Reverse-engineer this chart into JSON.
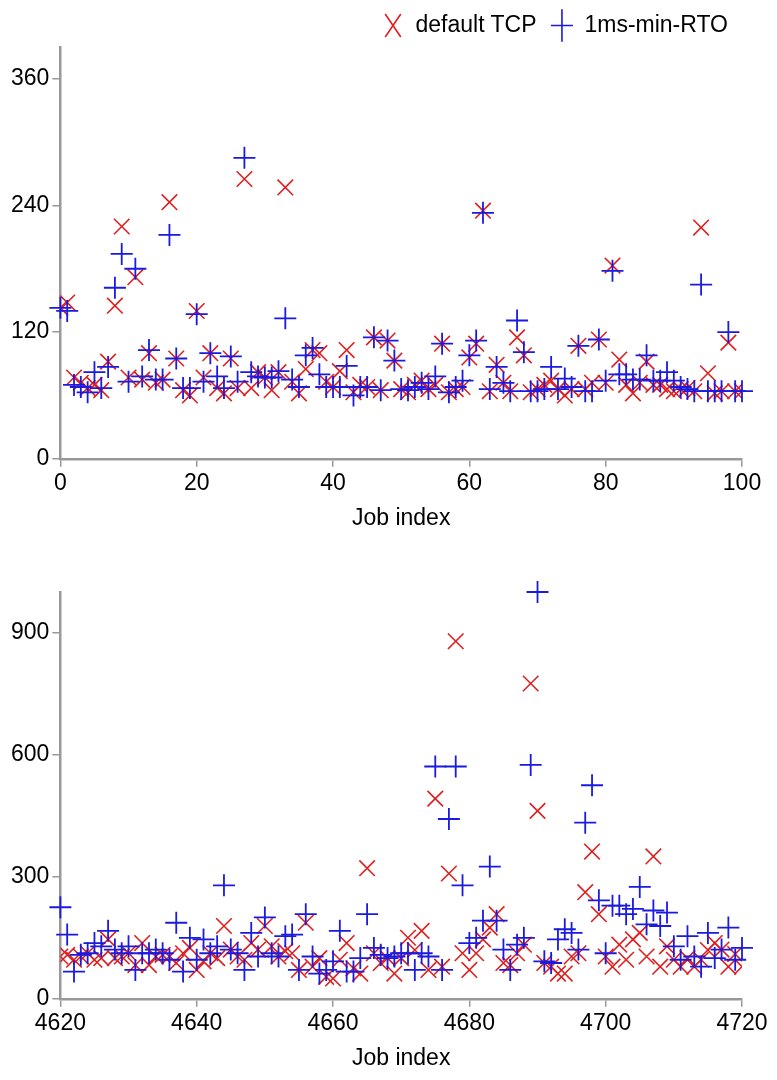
{
  "chart_data": [
    {
      "type": "scatter",
      "xlabel": "Job index",
      "xlim": [
        0,
        100
      ],
      "xticks": [
        0,
        20,
        40,
        60,
        80,
        100
      ],
      "ylim": [
        0,
        390
      ],
      "yticks": [
        0,
        120,
        240,
        360
      ],
      "grid": false,
      "legend": "top right",
      "x": [
        0,
        1,
        2,
        3,
        4,
        5,
        6,
        7,
        8,
        9,
        10,
        11,
        12,
        13,
        14,
        15,
        16,
        17,
        18,
        19,
        20,
        21,
        22,
        23,
        24,
        25,
        26,
        27,
        28,
        29,
        30,
        31,
        32,
        33,
        34,
        35,
        36,
        37,
        38,
        39,
        40,
        41,
        42,
        43,
        44,
        45,
        46,
        47,
        48,
        49,
        50,
        51,
        52,
        53,
        54,
        55,
        56,
        57,
        58,
        59,
        60,
        61,
        62,
        63,
        64,
        65,
        66,
        67,
        68,
        69,
        70,
        71,
        72,
        73,
        74,
        75,
        76,
        77,
        78,
        79,
        80,
        81,
        82,
        83,
        84,
        85,
        86,
        87,
        88,
        89,
        90,
        91,
        92,
        93,
        94,
        95,
        96,
        97,
        98,
        99,
        100
      ],
      "series": [
        {
          "name": "default TCP",
          "color": "#e02020",
          "marker": "x",
          "values": [
            143,
            148,
            77,
            72,
            67,
            70,
            65,
            92,
            145,
            220,
            77,
            172,
            75,
            100,
            72,
            75,
            243,
            95,
            65,
            60,
            140,
            77,
            100,
            67,
            62,
            95,
            67,
            265,
            67,
            82,
            77,
            65,
            82,
            257,
            73,
            62,
            85,
            103,
            100,
            73,
            68,
            83,
            103,
            63,
            70,
            68,
            115,
            65,
            112,
            93,
            66,
            63,
            70,
            74,
            66,
            70,
            109,
            63,
            66,
            68,
            96,
            109,
            235,
            64,
            89,
            72,
            64,
            115,
            98,
            63,
            66,
            70,
            74,
            66,
            60,
            66,
            107,
            66,
            72,
            113,
            72,
            183,
            94,
            70,
            62,
            72,
            92,
            70,
            70,
            66,
            64,
            66,
            67,
            64,
            219,
            81,
            62,
            64,
            110,
            64,
            64
          ]
        },
        {
          "name": "1ms-min-RTO",
          "color": "#1a1ae0",
          "marker": "cross",
          "values": [
            143,
            140,
            70,
            68,
            63,
            82,
            67,
            87,
            162,
            194,
            73,
            180,
            78,
            103,
            75,
            75,
            212,
            95,
            67,
            67,
            137,
            73,
            100,
            78,
            67,
            97,
            73,
            285,
            82,
            78,
            77,
            77,
            83,
            133,
            75,
            68,
            98,
            105,
            80,
            68,
            68,
            68,
            88,
            60,
            68,
            68,
            115,
            65,
            112,
            93,
            66,
            65,
            68,
            72,
            66,
            78,
            109,
            63,
            68,
            74,
            98,
            112,
            233,
            66,
            87,
            72,
            64,
            131,
            101,
            64,
            64,
            66,
            87,
            66,
            76,
            68,
            107,
            64,
            64,
            113,
            74,
            178,
            80,
            80,
            75,
            75,
            98,
            74,
            74,
            82,
            74,
            68,
            66,
            64,
            165,
            64,
            64,
            64,
            120,
            64,
            64
          ]
        }
      ]
    },
    {
      "type": "scatter",
      "xlabel": "Job index",
      "xlim": [
        4620,
        4720
      ],
      "xticks": [
        4620,
        4640,
        4660,
        4680,
        4700,
        4720
      ],
      "ylim": [
        0,
        1000
      ],
      "yticks": [
        0,
        300,
        600,
        900
      ],
      "grid": false,
      "x": [
        4620,
        4621,
        4622,
        4623,
        4624,
        4625,
        4626,
        4627,
        4628,
        4629,
        4630,
        4631,
        4632,
        4633,
        4634,
        4635,
        4636,
        4637,
        4638,
        4639,
        4640,
        4641,
        4642,
        4643,
        4644,
        4645,
        4646,
        4647,
        4648,
        4649,
        4650,
        4651,
        4652,
        4653,
        4654,
        4655,
        4656,
        4657,
        4658,
        4659,
        4660,
        4661,
        4662,
        4663,
        4664,
        4665,
        4666,
        4667,
        4668,
        4669,
        4670,
        4671,
        4672,
        4673,
        4674,
        4675,
        4676,
        4677,
        4678,
        4679,
        4680,
        4681,
        4682,
        4683,
        4684,
        4685,
        4686,
        4687,
        4688,
        4689,
        4690,
        4691,
        4692,
        4693,
        4694,
        4695,
        4696,
        4697,
        4698,
        4699,
        4700,
        4701,
        4702,
        4703,
        4704,
        4705,
        4706,
        4707,
        4708,
        4709,
        4710,
        4711,
        4712,
        4713,
        4714,
        4715,
        4716,
        4717,
        4718,
        4719,
        4720
      ],
      "series": [
        {
          "color": "#e02020",
          "marker": "x",
          "values": [
            104,
            108,
            96,
            104,
            112,
            96,
            100,
            146,
            100,
            104,
            112,
            83,
            137,
            83,
            104,
            108,
            104,
            88,
            112,
            125,
            71,
            92,
            112,
            100,
            179,
            121,
            104,
            96,
            137,
            121,
            179,
            129,
            104,
            117,
            112,
            71,
            187,
            79,
            100,
            54,
            50,
            96,
            137,
            75,
            62,
            321,
            112,
            88,
            100,
            62,
            100,
            150,
            120,
            167,
            71,
            492,
            79,
            308,
            879,
            112,
            71,
            112,
            146,
            175,
            208,
            88,
            83,
            112,
            133,
            775,
            462,
            88,
            79,
            62,
            62,
            104,
            112,
            262,
            362,
            208,
            104,
            79,
            133,
            96,
            146,
            162,
            104,
            350,
            79,
            129,
            96,
            79,
            100,
            79,
            96,
            120,
            137,
            121,
            79,
            110,
            79
          ]
        },
        {
          "color": "#1a1ae0",
          "marker": "cross",
          "values": [
            225,
            158,
            67,
            108,
            112,
            137,
            129,
            167,
            121,
            112,
            129,
            71,
            112,
            112,
            121,
            112,
            96,
            187,
            67,
            150,
            96,
            146,
            112,
            129,
            279,
            121,
            112,
            71,
            162,
            104,
            200,
            112,
            104,
            154,
            158,
            71,
            208,
            104,
            62,
            71,
            92,
            167,
            67,
            67,
            100,
            208,
            125,
            108,
            100,
            104,
            112,
            112,
            71,
            112,
            104,
            571,
            71,
            442,
            571,
            279,
            137,
            150,
            192,
            325,
            192,
            121,
            71,
            133,
            150,
            575,
            1000,
            92,
            88,
            146,
            171,
            162,
            121,
            433,
            525,
            242,
            112,
            229,
            229,
            208,
            221,
            275,
            183,
            217,
            179,
            212,
            129,
            96,
            154,
            104,
            79,
            162,
            100,
            121,
            175,
            96,
            125
          ]
        }
      ]
    }
  ]
}
